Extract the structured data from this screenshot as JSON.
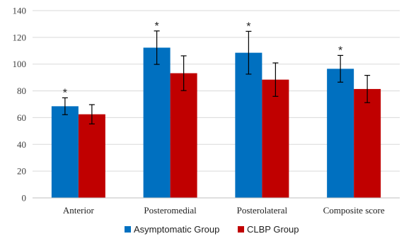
{
  "chart_data": {
    "type": "bar",
    "title": "",
    "xlabel": "",
    "ylabel": "",
    "ylim": [
      0,
      140
    ],
    "yticks": [
      0,
      20,
      40,
      60,
      80,
      100,
      120,
      140
    ],
    "grid": true,
    "legend_position": "bottom",
    "categories": [
      "Anterior",
      "Posteromedial",
      "Posterolateral",
      "Composite score"
    ],
    "series": [
      {
        "name": "Asymptomatic Group",
        "color": "#0070c0",
        "values": [
          68.5,
          112.3,
          108.5,
          96.5
        ],
        "error": [
          6.3,
          12.5,
          16.0,
          10.0
        ]
      },
      {
        "name": "CLBP Group",
        "color": "#c00000",
        "values": [
          62.5,
          93.2,
          88.4,
          81.4
        ],
        "error": [
          7.2,
          13.0,
          12.5,
          10.2
        ]
      }
    ],
    "annotations": [
      "*",
      "*",
      "*",
      "*"
    ]
  }
}
